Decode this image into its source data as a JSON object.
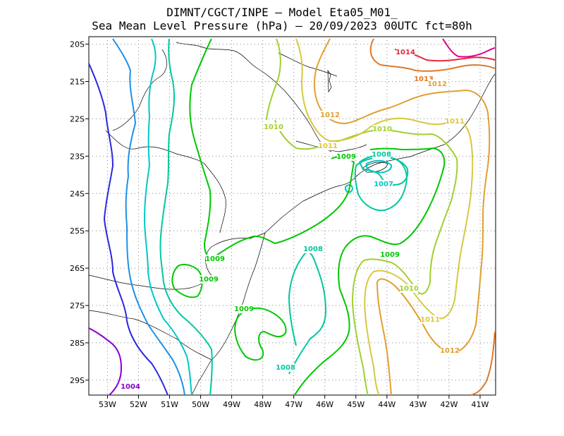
{
  "header": {
    "title_line1": "DIMNT/CGCT/INPE –  Model Eta05_M01_",
    "title_line2": "Sea Mean Level Pressure (hPa) – 20/09/2023 00UTC fct=80h"
  },
  "axes": {
    "lon_labels": [
      "53W",
      "52W",
      "51W",
      "50W",
      "49W",
      "48W",
      "47W",
      "46W",
      "45W",
      "44W",
      "43W",
      "42W",
      "41W"
    ],
    "lat_labels": [
      "20S",
      "21S",
      "22S",
      "23S",
      "24S",
      "25S",
      "26S",
      "27S",
      "28S",
      "29S"
    ],
    "lon_range": [
      -53.6,
      -40.5
    ],
    "lat_range": [
      -29.4,
      -19.8
    ],
    "grid": true
  },
  "contour_labels": [
    {
      "id": "1014",
      "text": "1014",
      "color": "#e8283c"
    },
    {
      "id": "1013",
      "text": "1013",
      "color": "#e07828"
    },
    {
      "id": "1012a",
      "text": "1012",
      "color": "#e0a030"
    },
    {
      "id": "1012b",
      "text": "1012",
      "color": "#e0a030"
    },
    {
      "id": "1012c",
      "text": "1012",
      "color": "#e0a030"
    },
    {
      "id": "1011a",
      "text": "1011",
      "color": "#d8c840"
    },
    {
      "id": "1011b",
      "text": "1011",
      "color": "#d8c840"
    },
    {
      "id": "1011c",
      "text": "1011",
      "color": "#d8c840"
    },
    {
      "id": "1010a",
      "text": "1010",
      "color": "#a0d030"
    },
    {
      "id": "1010b",
      "text": "1010",
      "color": "#a0d030"
    },
    {
      "id": "1010c",
      "text": "1010",
      "color": "#a0d030"
    },
    {
      "id": "1009a",
      "text": "1009",
      "color": "#00c800"
    },
    {
      "id": "1009b",
      "text": "1009",
      "color": "#00c800"
    },
    {
      "id": "1009c",
      "text": "1009",
      "color": "#00c800"
    },
    {
      "id": "1009d",
      "text": "1009",
      "color": "#00c800"
    },
    {
      "id": "1009e",
      "text": "1009",
      "color": "#00c800"
    },
    {
      "id": "1008a",
      "text": "1008",
      "color": "#00c8a0"
    },
    {
      "id": "1008b",
      "text": "1008",
      "color": "#00c8a0"
    },
    {
      "id": "1008c",
      "text": "1008",
      "color": "#00c8a0"
    },
    {
      "id": "1007",
      "text": "1007",
      "color": "#00c8c8"
    },
    {
      "id": "1004",
      "text": "1004",
      "color": "#8800c8"
    }
  ],
  "colors": {
    "c1004": "#8800c8",
    "c1005": "#2828e0",
    "c1006": "#1e90e8",
    "c1007": "#00c8c8",
    "c1008": "#00c8a0",
    "c1009": "#00c800",
    "c1010": "#a0d030",
    "c1011": "#d8c840",
    "c1012": "#e0a030",
    "c1013": "#e07828",
    "c1014": "#e8283c",
    "c1015": "#e0008c"
  }
}
